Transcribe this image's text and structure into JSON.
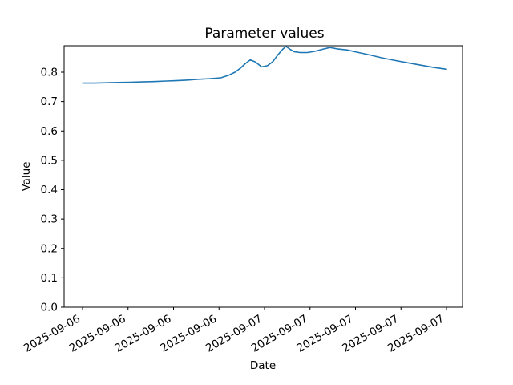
{
  "figure": {
    "background": "#ffffff"
  },
  "chart_data": {
    "type": "line",
    "title": "Parameter values",
    "xlabel": "Date",
    "ylabel": "Value",
    "grid": false,
    "legend": false,
    "line_color": "#1f77b4",
    "axis_color": "#000000",
    "ylim": [
      0.0,
      0.89
    ],
    "x_ticks": [
      {
        "pos": 0.0,
        "label": "2025-09-06"
      },
      {
        "pos": 0.125,
        "label": "2025-09-06"
      },
      {
        "pos": 0.25,
        "label": "2025-09-06"
      },
      {
        "pos": 0.375,
        "label": "2025-09-06"
      },
      {
        "pos": 0.5,
        "label": "2025-09-07"
      },
      {
        "pos": 0.625,
        "label": "2025-09-07"
      },
      {
        "pos": 0.75,
        "label": "2025-09-07"
      },
      {
        "pos": 0.875,
        "label": "2025-09-07"
      },
      {
        "pos": 1.0,
        "label": "2025-09-07"
      }
    ],
    "y_ticks": [
      {
        "value": 0.0,
        "label": "0.0"
      },
      {
        "value": 0.1,
        "label": "0.1"
      },
      {
        "value": 0.2,
        "label": "0.2"
      },
      {
        "value": 0.3,
        "label": "0.3"
      },
      {
        "value": 0.4,
        "label": "0.4"
      },
      {
        "value": 0.5,
        "label": "0.5"
      },
      {
        "value": 0.6,
        "label": "0.6"
      },
      {
        "value": 0.7,
        "label": "0.7"
      },
      {
        "value": 0.8,
        "label": "0.8"
      }
    ],
    "series": [
      {
        "x": [
          0.0,
          0.031,
          0.064,
          0.097,
          0.13,
          0.163,
          0.196,
          0.23,
          0.256,
          0.285,
          0.318,
          0.351,
          0.38,
          0.402,
          0.419,
          0.435,
          0.448,
          0.461,
          0.475,
          0.492,
          0.508,
          0.523,
          0.536,
          0.55,
          0.559,
          0.57,
          0.581,
          0.598,
          0.618,
          0.638,
          0.66,
          0.68,
          0.702,
          0.726,
          0.755,
          0.788,
          0.823,
          0.859,
          0.894,
          0.929,
          0.965,
          1.0
        ],
        "y": [
          0.763,
          0.763,
          0.764,
          0.765,
          0.766,
          0.767,
          0.768,
          0.77,
          0.771,
          0.773,
          0.776,
          0.778,
          0.781,
          0.79,
          0.8,
          0.815,
          0.83,
          0.842,
          0.835,
          0.818,
          0.822,
          0.836,
          0.858,
          0.878,
          0.888,
          0.878,
          0.87,
          0.867,
          0.867,
          0.871,
          0.878,
          0.884,
          0.879,
          0.876,
          0.868,
          0.859,
          0.849,
          0.84,
          0.832,
          0.824,
          0.816,
          0.81
        ]
      }
    ]
  }
}
